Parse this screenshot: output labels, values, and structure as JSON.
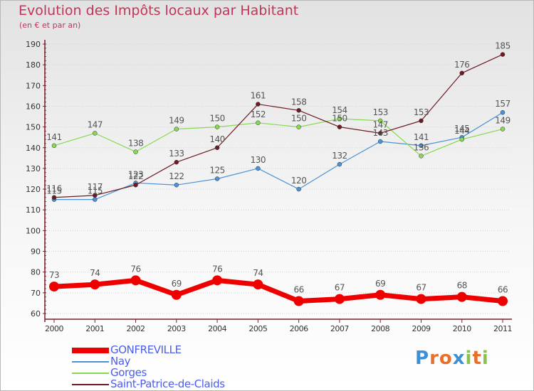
{
  "title": "Evolution des Impôts locaux par Habitant",
  "subtitle": "(en € et par an)",
  "brand": {
    "letters": [
      "P",
      "r",
      "o",
      "x",
      "i",
      "t",
      "i"
    ]
  },
  "colors": {
    "title": "#c0355a",
    "axis": "#7a1f2e",
    "grid": "#d4d4d4",
    "label": "#555555",
    "legend_text": "#4a5df0",
    "brand": [
      "#3d8fd6",
      "#e8702a",
      "#e8702a",
      "#3d8fd6",
      "#8bc34a",
      "#e8702a",
      "#8bc34a"
    ]
  },
  "chart_data": {
    "type": "line",
    "title": "Evolution des Impôts locaux par Habitant",
    "subtitle": "(en € et par an)",
    "xlabel": "",
    "ylabel": "",
    "categories": [
      "2000",
      "2001",
      "2002",
      "2003",
      "2004",
      "2005",
      "2006",
      "2007",
      "2008",
      "2009",
      "2010",
      "2011"
    ],
    "ylim": [
      60,
      190
    ],
    "yticks": [
      60,
      70,
      80,
      90,
      100,
      110,
      120,
      130,
      140,
      150,
      160,
      170,
      180,
      190
    ],
    "grid": true,
    "legend_position": "bottom-left",
    "series": [
      {
        "name": "GONFREVILLE",
        "color": "#ee0000",
        "values": [
          73,
          74,
          76,
          69,
          76,
          74,
          66,
          67,
          69,
          67,
          68,
          66
        ]
      },
      {
        "name": "Nay",
        "color": "#4b93d4",
        "values": [
          115,
          115,
          123,
          122,
          125,
          130,
          120,
          132,
          143,
          141,
          145,
          157
        ]
      },
      {
        "name": "Gorges",
        "color": "#88d852",
        "values": [
          141,
          147,
          138,
          149,
          150,
          152,
          150,
          154,
          153,
          136,
          144,
          149
        ]
      },
      {
        "name": "Saint-Patrice-de-Claids",
        "color": "#6e1a24",
        "values": [
          116,
          117,
          122,
          133,
          140,
          161,
          158,
          150,
          147,
          153,
          176,
          185
        ]
      }
    ]
  }
}
